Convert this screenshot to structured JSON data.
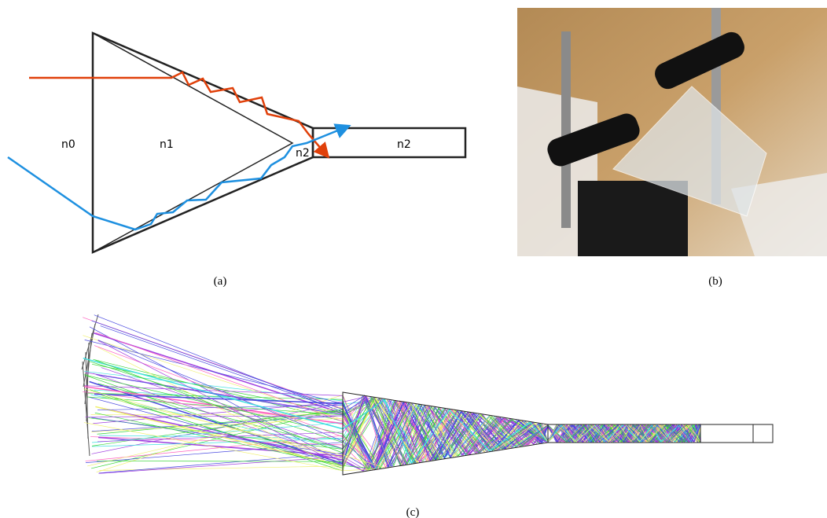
{
  "panels": [
    {
      "caption": "(a)",
      "labels": [
        "n0",
        "n1",
        "n2",
        "n2"
      ]
    },
    {
      "caption": "(b)"
    },
    {
      "caption": "(c)"
    }
  ]
}
